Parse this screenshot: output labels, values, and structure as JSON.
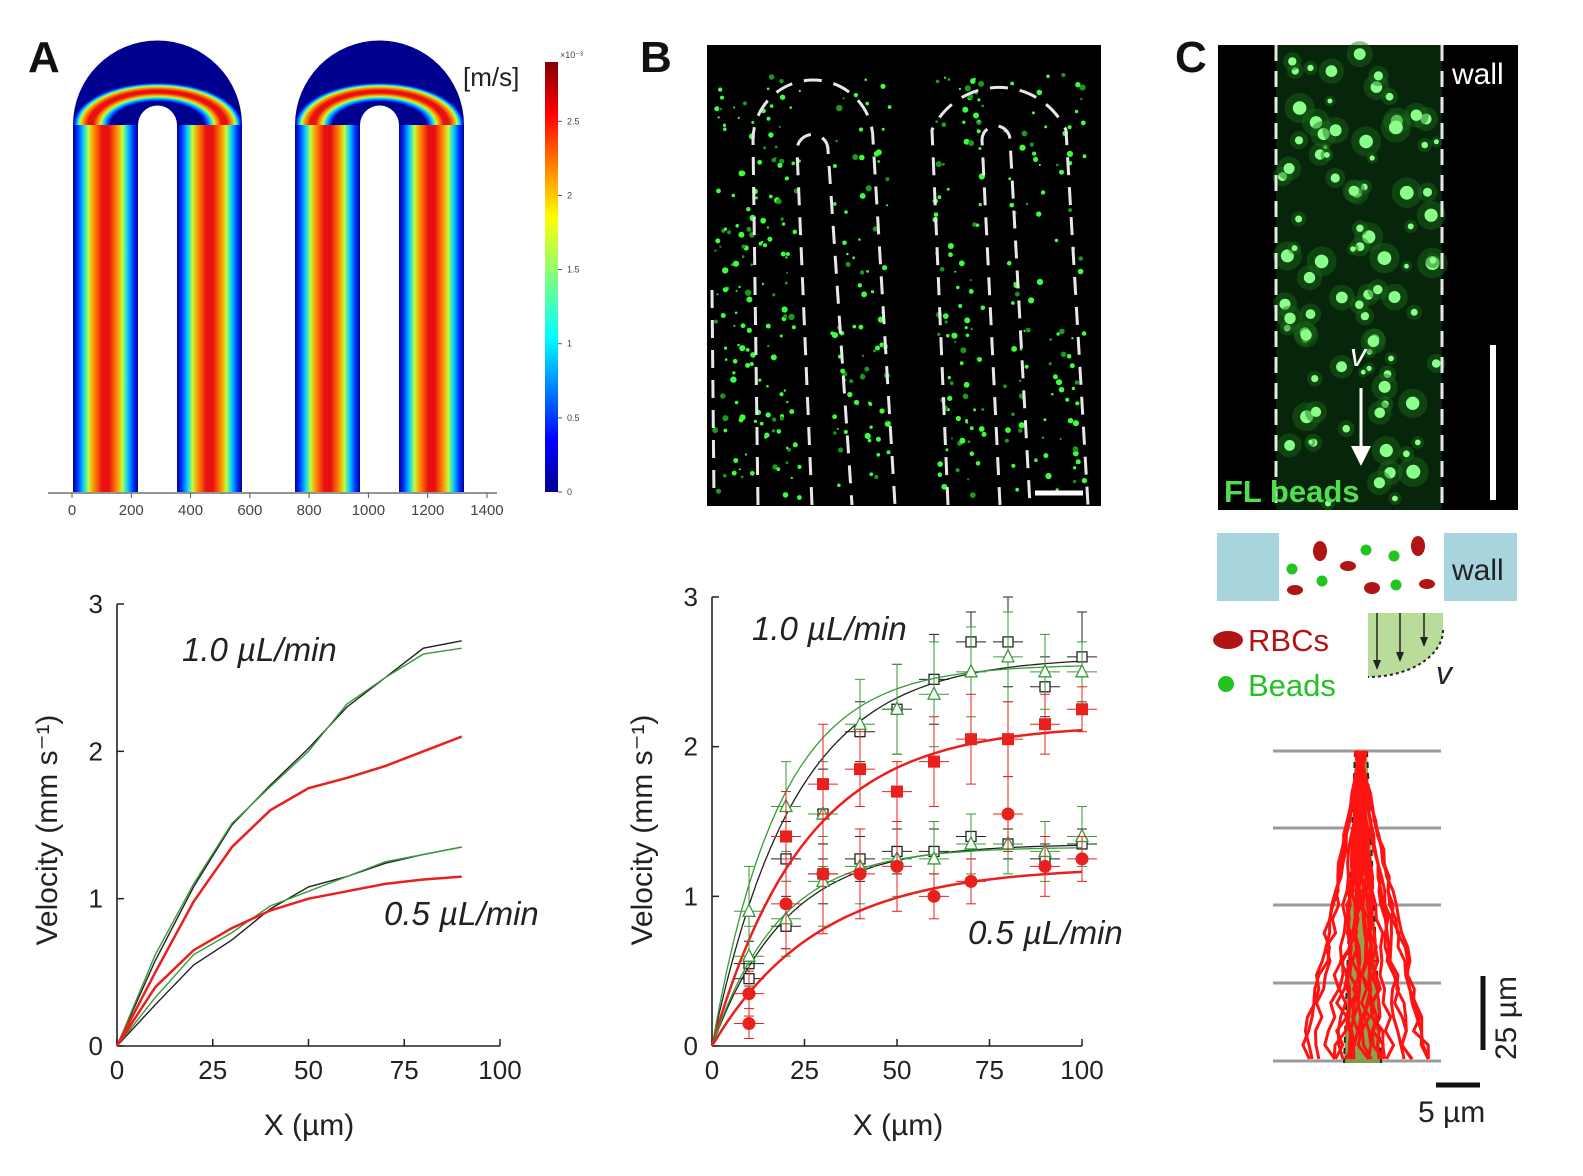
{
  "panels": {
    "A": {
      "letter": "A",
      "colorbar": {
        "unit": "[m/s]",
        "exponent": "×10⁻³",
        "ticks": [
          "0",
          "0.5",
          "1",
          "1.5",
          "2",
          "2.5"
        ],
        "ticks_values": [
          0,
          0.5,
          1,
          1.5,
          2,
          2.5
        ],
        "max": 2.9
      },
      "sim_axis_ticks": [
        "0",
        "200",
        "400",
        "600",
        "800",
        "1000",
        "1200",
        "1400"
      ]
    },
    "B": {
      "letter": "B"
    },
    "C": {
      "letter": "C",
      "wall_label": "wall",
      "velocity_symbol": "v",
      "fl_beads_label": "FL beads",
      "legend": {
        "rbcs": "RBCs",
        "beads": "Beads",
        "wall": "wall",
        "v": "v"
      },
      "scale_vertical": "25 µm",
      "scale_horizontal": "5 µm"
    }
  },
  "chart_data": [
    {
      "type": "line",
      "panel": "A",
      "xlabel": "X (µm)",
      "ylabel": "Velocity (mm s⁻¹)",
      "xlim": [
        0,
        100
      ],
      "ylim": [
        0,
        3
      ],
      "xticks": [
        0,
        25,
        50,
        75,
        100
      ],
      "yticks": [
        0,
        1,
        2,
        3
      ],
      "annotations": [
        "1.0 µL/min",
        "0.5 µL/min"
      ],
      "colors": {
        "black": "#222222",
        "green": "#3a9a3a",
        "red": "#e8201e"
      },
      "series": [
        {
          "color": "black",
          "x": [
            0,
            10,
            20,
            30,
            40,
            50,
            60,
            70,
            80,
            90
          ],
          "values": [
            0,
            0.58,
            1.08,
            1.5,
            1.77,
            2.02,
            2.3,
            2.5,
            2.7,
            2.75
          ]
        },
        {
          "color": "green",
          "x": [
            0,
            10,
            20,
            30,
            40,
            50,
            60,
            70,
            80,
            90
          ],
          "values": [
            0,
            0.62,
            1.1,
            1.51,
            1.76,
            2.0,
            2.32,
            2.5,
            2.66,
            2.7
          ]
        },
        {
          "color": "red",
          "x": [
            0,
            10,
            20,
            30,
            40,
            50,
            60,
            70,
            80,
            90
          ],
          "values": [
            0,
            0.5,
            0.98,
            1.35,
            1.6,
            1.75,
            1.82,
            1.9,
            2.0,
            2.1
          ]
        },
        {
          "color": "black",
          "x": [
            0,
            10,
            20,
            30,
            40,
            50,
            60,
            70,
            80,
            90
          ],
          "values": [
            0,
            0.28,
            0.55,
            0.72,
            0.93,
            1.08,
            1.15,
            1.24,
            1.3,
            1.35
          ]
        },
        {
          "color": "green",
          "x": [
            0,
            10,
            20,
            30,
            40,
            50,
            60,
            70,
            80,
            90
          ],
          "values": [
            0,
            0.33,
            0.62,
            0.77,
            0.95,
            1.05,
            1.15,
            1.25,
            1.3,
            1.35
          ]
        },
        {
          "color": "red",
          "x": [
            0,
            10,
            20,
            30,
            40,
            50,
            60,
            70,
            80,
            90
          ],
          "values": [
            0,
            0.4,
            0.65,
            0.8,
            0.92,
            1.0,
            1.05,
            1.1,
            1.13,
            1.15
          ]
        }
      ]
    },
    {
      "type": "scatter",
      "panel": "B",
      "xlabel": "X (µm)",
      "ylabel": "Velocity (mm s⁻¹)",
      "xlim": [
        0,
        100
      ],
      "ylim": [
        0,
        3
      ],
      "xticks": [
        0,
        25,
        50,
        75,
        100
      ],
      "yticks": [
        0,
        1,
        2,
        3
      ],
      "annotations": [
        "1.0 µL/min",
        "0.5 µL/min"
      ],
      "colors": {
        "black": "#222222",
        "green": "#3a9a3a",
        "red": "#e8201e"
      },
      "series": [
        {
          "marker": "open-square",
          "color": "black",
          "x": [
            10,
            20,
            30,
            40,
            50,
            60,
            70,
            80,
            90,
            100
          ],
          "values": [
            0.55,
            1.25,
            1.55,
            2.1,
            2.25,
            2.45,
            2.7,
            2.7,
            2.4,
            2.6
          ],
          "err": [
            0.15,
            0.25,
            0.3,
            0.2,
            0.3,
            0.3,
            0.2,
            0.3,
            0.2,
            0.3
          ],
          "fit_plateau": 2.6,
          "fit_rate": 0.045
        },
        {
          "marker": "open-triangle",
          "color": "green",
          "x": [
            10,
            20,
            30,
            40,
            50,
            60,
            70,
            80,
            90,
            100
          ],
          "values": [
            0.9,
            1.6,
            1.55,
            2.15,
            2.25,
            2.35,
            2.5,
            2.6,
            2.5,
            2.5
          ],
          "err": [
            0.3,
            0.3,
            0.35,
            0.3,
            0.3,
            0.35,
            0.3,
            0.3,
            0.25,
            0.2
          ],
          "fit_plateau": 2.55,
          "fit_rate": 0.055
        },
        {
          "marker": "filled-square",
          "color": "red",
          "x": [
            20,
            30,
            40,
            50,
            60,
            70,
            80,
            90,
            100
          ],
          "values": [
            1.4,
            1.75,
            1.85,
            1.7,
            1.9,
            2.05,
            2.05,
            2.15,
            2.25
          ],
          "err": [
            0.3,
            0.4,
            0.25,
            0.2,
            0.3,
            0.3,
            0.25,
            0.2,
            0.15
          ],
          "fit_plateau": 2.15,
          "fit_rate": 0.04
        },
        {
          "marker": "open-square",
          "color": "black",
          "x": [
            10,
            20,
            30,
            40,
            50,
            60,
            70,
            80,
            90,
            100
          ],
          "values": [
            0.45,
            0.8,
            1.15,
            1.25,
            1.3,
            1.3,
            1.4,
            1.35,
            1.25,
            1.35
          ],
          "err": [
            0.1,
            0.15,
            0.2,
            0.15,
            0.15,
            0.15,
            0.15,
            0.1,
            0.1,
            0.1
          ],
          "fit_plateau": 1.35,
          "fit_rate": 0.05
        },
        {
          "marker": "open-triangle",
          "color": "green",
          "x": [
            10,
            20,
            30,
            40,
            50,
            60,
            70,
            80,
            90,
            100
          ],
          "values": [
            0.6,
            0.85,
            1.1,
            1.2,
            1.25,
            1.25,
            1.35,
            1.35,
            1.3,
            1.4
          ],
          "err": [
            0.2,
            0.25,
            0.3,
            0.25,
            0.25,
            0.25,
            0.2,
            0.2,
            0.2,
            0.2
          ],
          "fit_plateau": 1.33,
          "fit_rate": 0.055
        },
        {
          "marker": "filled-circle",
          "color": "red",
          "x": [
            10,
            10,
            20,
            30,
            40,
            50,
            60,
            70,
            80,
            90,
            100
          ],
          "values": [
            0.15,
            0.35,
            0.95,
            1.15,
            1.15,
            1.2,
            1.0,
            1.1,
            1.55,
            1.2,
            1.25
          ],
          "err": [
            0.1,
            0.15,
            0.3,
            0.4,
            0.3,
            0.3,
            0.15,
            0.15,
            0.25,
            0.2,
            0.15
          ],
          "fit_plateau": 1.2,
          "fit_rate": 0.035
        }
      ]
    }
  ]
}
